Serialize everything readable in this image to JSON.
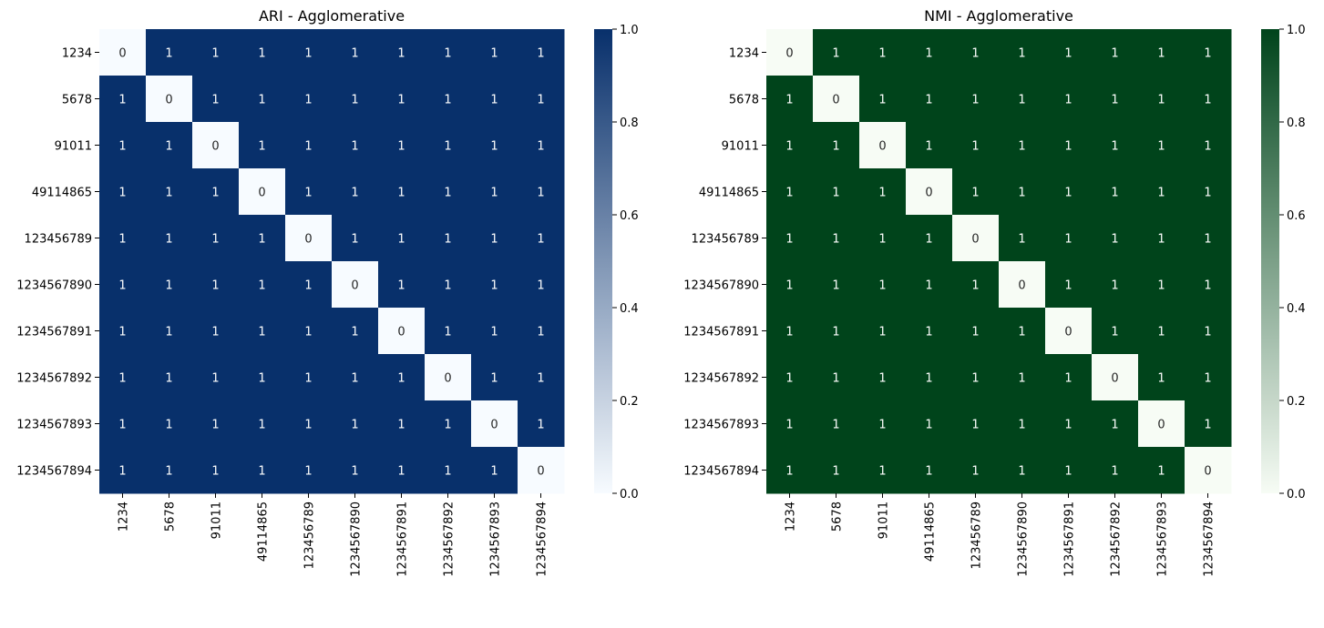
{
  "chart_data": [
    {
      "type": "heatmap",
      "title": "ARI - Agglomerative",
      "labels": [
        "1234",
        "5678",
        "91011",
        "49114865",
        "123456789",
        "1234567890",
        "1234567891",
        "1234567892",
        "1234567893",
        "1234567894"
      ],
      "values": [
        [
          0,
          1,
          1,
          1,
          1,
          1,
          1,
          1,
          1,
          1
        ],
        [
          1,
          0,
          1,
          1,
          1,
          1,
          1,
          1,
          1,
          1
        ],
        [
          1,
          1,
          0,
          1,
          1,
          1,
          1,
          1,
          1,
          1
        ],
        [
          1,
          1,
          1,
          0,
          1,
          1,
          1,
          1,
          1,
          1
        ],
        [
          1,
          1,
          1,
          1,
          0,
          1,
          1,
          1,
          1,
          1
        ],
        [
          1,
          1,
          1,
          1,
          1,
          0,
          1,
          1,
          1,
          1
        ],
        [
          1,
          1,
          1,
          1,
          1,
          1,
          0,
          1,
          1,
          1
        ],
        [
          1,
          1,
          1,
          1,
          1,
          1,
          1,
          0,
          1,
          1
        ],
        [
          1,
          1,
          1,
          1,
          1,
          1,
          1,
          1,
          0,
          1
        ],
        [
          1,
          1,
          1,
          1,
          1,
          1,
          1,
          1,
          1,
          0
        ]
      ],
      "colormap": "Blues",
      "color_low": "#f7fbff",
      "color_high": "#08306b",
      "vmin": 0,
      "vmax": 1,
      "colorbar_ticks": [
        "0.0",
        "0.2",
        "0.4",
        "0.6",
        "0.8",
        "1.0"
      ],
      "annotated": true
    },
    {
      "type": "heatmap",
      "title": "NMI - Agglomerative",
      "labels": [
        "1234",
        "5678",
        "91011",
        "49114865",
        "123456789",
        "1234567890",
        "1234567891",
        "1234567892",
        "1234567893",
        "1234567894"
      ],
      "values": [
        [
          0,
          1,
          1,
          1,
          1,
          1,
          1,
          1,
          1,
          1
        ],
        [
          1,
          0,
          1,
          1,
          1,
          1,
          1,
          1,
          1,
          1
        ],
        [
          1,
          1,
          0,
          1,
          1,
          1,
          1,
          1,
          1,
          1
        ],
        [
          1,
          1,
          1,
          0,
          1,
          1,
          1,
          1,
          1,
          1
        ],
        [
          1,
          1,
          1,
          1,
          0,
          1,
          1,
          1,
          1,
          1
        ],
        [
          1,
          1,
          1,
          1,
          1,
          0,
          1,
          1,
          1,
          1
        ],
        [
          1,
          1,
          1,
          1,
          1,
          1,
          0,
          1,
          1,
          1
        ],
        [
          1,
          1,
          1,
          1,
          1,
          1,
          1,
          0,
          1,
          1
        ],
        [
          1,
          1,
          1,
          1,
          1,
          1,
          1,
          1,
          0,
          1
        ],
        [
          1,
          1,
          1,
          1,
          1,
          1,
          1,
          1,
          1,
          0
        ]
      ],
      "colormap": "Greens",
      "color_low": "#f7fcf5",
      "color_high": "#00441b",
      "vmin": 0,
      "vmax": 1,
      "colorbar_ticks": [
        "0.0",
        "0.2",
        "0.4",
        "0.6",
        "0.8",
        "1.0"
      ],
      "annotated": true
    }
  ]
}
